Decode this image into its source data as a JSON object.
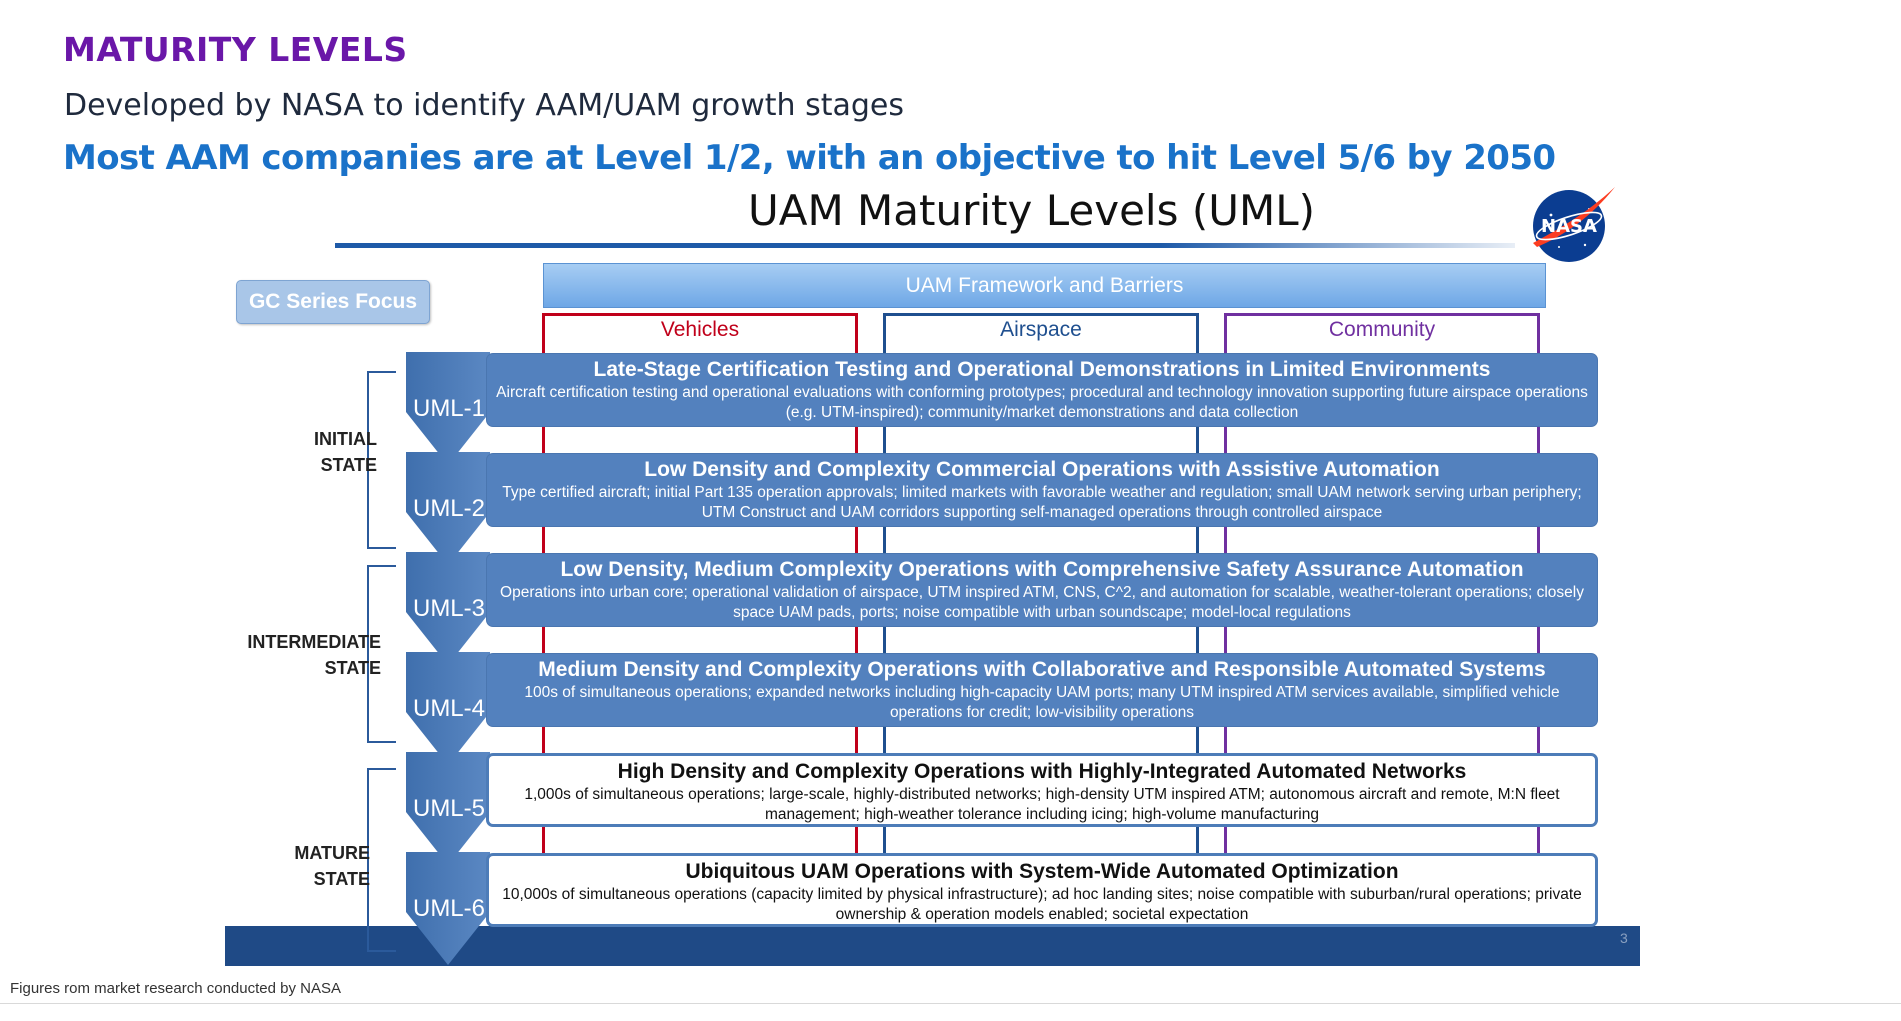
{
  "header": {
    "title": "MATURITY LEVELS",
    "subtitle": "Developed by NASA to identify AAM/UAM growth stages",
    "key_point": "Most AAM companies are at Level 1/2, with an objective to hit Level 5/6 by 2050"
  },
  "figure": {
    "title": "UAM Maturity Levels (UML)",
    "logo_text": "NASA",
    "focus_tag": "GC Series Focus",
    "framework_label": "UAM Framework and Barriers",
    "columns": [
      {
        "label": "Vehicles",
        "color": "#c0001a"
      },
      {
        "label": "Airspace",
        "color": "#1f4f8f"
      },
      {
        "label": "Community",
        "color": "#7030a0"
      }
    ],
    "states": [
      {
        "line1": "INITIAL",
        "line2": "STATE"
      },
      {
        "line1": "INTERMEDIATE",
        "line2": "STATE"
      },
      {
        "line1": "MATURE",
        "line2": "STATE"
      }
    ],
    "levels": [
      {
        "id": "UML-1",
        "title": "Late-Stage Certification Testing and Operational Demonstrations in Limited Environments",
        "description": "Aircraft certification testing and operational evaluations with conforming prototypes; procedural and technology innovation supporting future airspace operations (e.g. UTM-inspired); community/market demonstrations and data collection"
      },
      {
        "id": "UML-2",
        "title": "Low Density and Complexity Commercial Operations with Assistive Automation",
        "description": "Type certified aircraft; initial Part 135 operation approvals; limited markets with favorable weather and regulation; small UAM network serving urban periphery; UTM Construct and UAM corridors supporting self-managed operations through controlled airspace"
      },
      {
        "id": "UML-3",
        "title": "Low Density, Medium Complexity Operations with Comprehensive Safety Assurance Automation",
        "description": "Operations into urban core; operational validation of airspace, UTM inspired ATM, CNS, C^2, and automation for scalable, weather-tolerant operations; closely space UAM pads, ports; noise compatible with urban soundscape;  model-local regulations"
      },
      {
        "id": "UML-4",
        "title": "Medium Density and Complexity Operations with Collaborative and Responsible Automated Systems",
        "description": "100s of simultaneous operations; expanded networks including high-capacity UAM ports; many UTM inspired ATM services available, simplified vehicle operations for credit; low-visibility operations"
      },
      {
        "id": "UML-5",
        "title": "High Density and Complexity Operations with Highly-Integrated Automated Networks",
        "description": "1,000s of simultaneous operations; large-scale, highly-distributed networks; high-density UTM inspired ATM; autonomous aircraft and remote, M:N fleet management; high-weather tolerance including icing; high-volume manufacturing"
      },
      {
        "id": "UML-6",
        "title": "Ubiquitous UAM Operations with System-Wide Automated Optimization",
        "description": "10,000s of simultaneous operations (capacity limited by physical infrastructure); ad hoc landing sites; noise compatible with suburban/rural operations; private ownership & operation models enabled; societal expectation"
      }
    ],
    "page_number": "3"
  },
  "footnote": "Figures rom market research conducted by NASA"
}
